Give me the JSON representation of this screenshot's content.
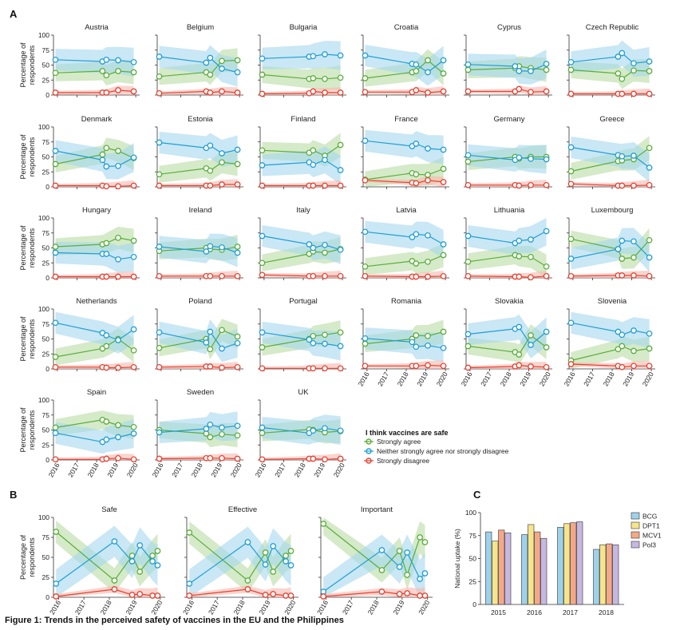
{
  "figure": {
    "panel_letters": [
      "A",
      "B",
      "C"
    ],
    "caption": "Figure 1: Trends in the perceived safety of vaccines in the EU and the Philippines",
    "y_label_line1": "Percentage of",
    "y_label_line2": "respondents",
    "y_ticks": [
      "0",
      "25",
      "50",
      "75",
      "100"
    ],
    "x_ticks": [
      "2016",
      "2017",
      "2018",
      "2019",
      "2020"
    ]
  },
  "legend_A": {
    "title": "I think vaccines are safe",
    "items": [
      {
        "label": "Strongly agree",
        "color": "#5aae3a"
      },
      {
        "label": "Neither strongly agree nor strongly disagree",
        "color": "#1f9fd6"
      },
      {
        "label": "Strongly disagree",
        "color": "#e8402f"
      }
    ]
  },
  "colors": {
    "agree": "#5aae3a",
    "neither": "#1f9fd6",
    "disagree": "#e8402f",
    "agree_band": "#b9dca4",
    "neither_band": "#a5d7ef",
    "disagree_band": "#f6b7ad"
  },
  "chart_data": [
    {
      "type": "line",
      "panel": "A",
      "ylim": [
        0,
        100
      ],
      "x_range": [
        2015.8,
        2020.2
      ],
      "survey_x": [
        2015.9,
        2018.3,
        2018.5,
        2019.1,
        2019.9
      ],
      "series_names": [
        "Strongly agree",
        "Neither strongly agree nor strongly disagree",
        "Strongly disagree"
      ],
      "countries": [
        {
          "name": "Austria",
          "agree": [
            37,
            40,
            33,
            40,
            38
          ],
          "neither": [
            59,
            56,
            59,
            58,
            55
          ],
          "disagree": [
            4,
            4,
            4,
            8,
            6
          ]
        },
        {
          "name": "Belgium",
          "agree": [
            31,
            38,
            34,
            57,
            58
          ],
          "neither": [
            64,
            54,
            62,
            44,
            38
          ],
          "disagree": [
            3,
            6,
            4,
            6,
            4
          ]
        },
        {
          "name": "Bulgaria",
          "agree": [
            34,
            27,
            28,
            27,
            29
          ],
          "neither": [
            61,
            64,
            65,
            68,
            66
          ],
          "disagree": [
            2,
            3,
            6,
            4,
            4
          ]
        },
        {
          "name": "Croatia",
          "agree": [
            28,
            38,
            40,
            58,
            36
          ],
          "neither": [
            66,
            52,
            51,
            38,
            58
          ],
          "disagree": [
            5,
            5,
            8,
            4,
            6
          ]
        },
        {
          "name": "Cyprus",
          "agree": [
            42,
            45,
            48,
            45,
            42
          ],
          "neither": [
            51,
            48,
            40,
            40,
            52
          ],
          "disagree": [
            6,
            6,
            10,
            5,
            6
          ]
        },
        {
          "name": "Czech Republic",
          "agree": [
            42,
            36,
            27,
            41,
            40
          ],
          "neither": [
            55,
            64,
            70,
            53,
            56
          ],
          "disagree": [
            2,
            2,
            2,
            2,
            2
          ]
        },
        {
          "name": "Denmark",
          "agree": [
            38,
            54,
            65,
            60,
            48
          ],
          "neither": [
            60,
            45,
            34,
            35,
            49
          ],
          "disagree": [
            2,
            2,
            1,
            1,
            2
          ]
        },
        {
          "name": "Estonia",
          "agree": [
            21,
            31,
            27,
            41,
            38
          ],
          "neither": [
            74,
            65,
            69,
            56,
            62
          ],
          "disagree": [
            2,
            2,
            2,
            4,
            4
          ]
        },
        {
          "name": "Finland",
          "agree": [
            61,
            57,
            61,
            52,
            70
          ],
          "neither": [
            36,
            41,
            37,
            45,
            28
          ],
          "disagree": [
            2,
            2,
            2,
            2,
            2
          ]
        },
        {
          "name": "France",
          "agree": [
            12,
            23,
            21,
            20,
            30
          ],
          "neither": [
            77,
            68,
            72,
            64,
            62
          ],
          "disagree": [
            11,
            7,
            6,
            11,
            8
          ]
        },
        {
          "name": "Germany",
          "agree": [
            42,
            50,
            47,
            50,
            50
          ],
          "neither": [
            53,
            45,
            49,
            47,
            46
          ],
          "disagree": [
            3,
            3,
            2,
            3,
            3
          ]
        },
        {
          "name": "Greece",
          "agree": [
            26,
            43,
            44,
            46,
            65
          ],
          "neither": [
            66,
            53,
            51,
            52,
            32
          ],
          "disagree": [
            5,
            2,
            2,
            2,
            3
          ]
        },
        {
          "name": "Hungary",
          "agree": [
            52,
            56,
            58,
            67,
            62
          ],
          "neither": [
            42,
            40,
            40,
            31,
            35
          ],
          "disagree": [
            2,
            2,
            2,
            2,
            2
          ]
        },
        {
          "name": "Ireland",
          "agree": [
            45,
            50,
            48,
            47,
            52
          ],
          "neither": [
            52,
            44,
            53,
            51,
            42
          ],
          "disagree": [
            3,
            3,
            3,
            3,
            3
          ]
        },
        {
          "name": "Italy",
          "agree": [
            25,
            40,
            44,
            42,
            48
          ],
          "neither": [
            70,
            56,
            50,
            55,
            47
          ],
          "disagree": [
            5,
            3,
            3,
            3,
            3
          ]
        },
        {
          "name": "Latvia",
          "agree": [
            19,
            28,
            24,
            27,
            38
          ],
          "neither": [
            77,
            68,
            73,
            71,
            56
          ],
          "disagree": [
            3,
            2,
            2,
            2,
            3
          ]
        },
        {
          "name": "Lithuania",
          "agree": [
            27,
            38,
            36,
            35,
            19
          ],
          "neither": [
            70,
            58,
            62,
            64,
            78
          ],
          "disagree": [
            3,
            2,
            2,
            1,
            3
          ]
        },
        {
          "name": "Luxembourg",
          "agree": [
            65,
            48,
            32,
            34,
            63
          ],
          "neither": [
            32,
            48,
            62,
            61,
            34
          ],
          "disagree": [
            3,
            4,
            4,
            4,
            3
          ]
        },
        {
          "name": "Netherlands",
          "agree": [
            20,
            34,
            38,
            50,
            31
          ],
          "neither": [
            77,
            60,
            56,
            48,
            66
          ],
          "disagree": [
            3,
            3,
            2,
            2,
            3
          ]
        },
        {
          "name": "Poland",
          "agree": [
            35,
            50,
            33,
            65,
            54
          ],
          "neither": [
            61,
            44,
            62,
            34,
            43
          ],
          "disagree": [
            3,
            4,
            4,
            2,
            3
          ]
        },
        {
          "name": "Portugal",
          "agree": [
            36,
            50,
            55,
            57,
            61
          ],
          "neither": [
            61,
            49,
            43,
            42,
            38
          ],
          "disagree": [
            1,
            1,
            1,
            1,
            1
          ]
        },
        {
          "name": "Romania",
          "agree": [
            42,
            50,
            56,
            55,
            62
          ],
          "neither": [
            51,
            45,
            37,
            39,
            35
          ],
          "disagree": [
            5,
            5,
            5,
            6,
            5
          ]
        },
        {
          "name": "Slovakia",
          "agree": [
            38,
            28,
            24,
            56,
            36
          ],
          "neither": [
            58,
            67,
            70,
            40,
            62
          ],
          "disagree": [
            2,
            4,
            6,
            4,
            3
          ]
        },
        {
          "name": "Slovenia",
          "agree": [
            14,
            33,
            38,
            30,
            34
          ],
          "neither": [
            77,
            62,
            57,
            64,
            59
          ],
          "disagree": [
            8,
            5,
            3,
            5,
            5
          ]
        },
        {
          "name": "Spain",
          "agree": [
            54,
            67,
            64,
            58,
            55
          ],
          "neither": [
            45,
            30,
            34,
            38,
            44
          ],
          "disagree": [
            1,
            1,
            2,
            3,
            1
          ]
        },
        {
          "name": "Sweden",
          "agree": [
            50,
            44,
            38,
            43,
            41
          ],
          "neither": [
            46,
            52,
            59,
            54,
            57
          ],
          "disagree": [
            2,
            3,
            3,
            3,
            2
          ]
        },
        {
          "name": "UK",
          "agree": [
            45,
            51,
            50,
            46,
            48
          ],
          "neither": [
            54,
            45,
            49,
            53,
            49
          ],
          "disagree": [
            1,
            2,
            2,
            1,
            2
          ]
        }
      ]
    },
    {
      "type": "line",
      "panel": "B",
      "ylim": [
        0,
        100
      ],
      "x_range": [
        2015.8,
        2020.2
      ],
      "survey_x": [
        2015.9,
        2018.2,
        2018.9,
        2019.2,
        2019.7,
        2019.9
      ],
      "subplots": [
        {
          "name": "Safe",
          "agree": [
            82,
            21,
            52,
            32,
            52,
            58
          ],
          "neither": [
            17,
            70,
            45,
            65,
            45,
            40
          ],
          "disagree": [
            1,
            10,
            3,
            4,
            2,
            2
          ]
        },
        {
          "name": "Effective",
          "agree": [
            81,
            21,
            56,
            32,
            52,
            58
          ],
          "neither": [
            17,
            69,
            41,
            64,
            45,
            40
          ],
          "disagree": [
            2,
            10,
            3,
            4,
            2,
            2
          ]
        },
        {
          "name": "Important",
          "agree": [
            92,
            34,
            58,
            28,
            75,
            69
          ],
          "neither": [
            7,
            59,
            38,
            56,
            23,
            30
          ],
          "disagree": [
            1,
            7,
            4,
            5,
            2,
            2
          ]
        }
      ]
    },
    {
      "type": "bar",
      "panel": "C",
      "categories": [
        "2015",
        "2016",
        "2017",
        "2018"
      ],
      "ylabel": "National uptake (%)",
      "ylim": [
        0,
        100
      ],
      "y_ticks": [
        "0",
        "25",
        "50",
        "75",
        "100"
      ],
      "series": [
        {
          "name": "BCG",
          "color": "#9fd2ea",
          "values": [
            79,
            76,
            84,
            60
          ]
        },
        {
          "name": "DPT1",
          "color": "#f6e58c",
          "values": [
            69,
            87,
            88,
            65
          ]
        },
        {
          "name": "MCV1",
          "color": "#f3a988",
          "values": [
            81,
            79,
            89,
            66
          ]
        },
        {
          "name": "Pol3",
          "color": "#c7b8e0",
          "values": [
            78,
            72,
            90,
            65
          ]
        }
      ]
    }
  ]
}
